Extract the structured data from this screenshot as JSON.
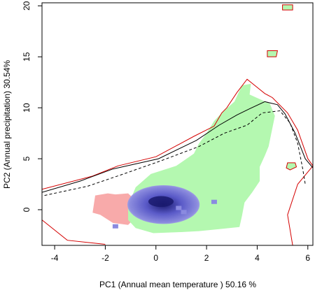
{
  "chart_data": {
    "type": "contour",
    "xlabel": "PC1 (Annual mean temperature ) 50.16 %",
    "ylabel": "PC2 (Annual precipitation) 30.54%",
    "xlim": [
      -4.5,
      6.2
    ],
    "ylim": [
      -3.5,
      20.3
    ],
    "x_ticks": [
      -4,
      -2,
      0,
      2,
      4,
      6
    ],
    "y_ticks": [
      0,
      5,
      10,
      15,
      20
    ],
    "grid": false,
    "legend": "none",
    "colors": {
      "green_region": "#b4f8b0",
      "pink_region": "#f8aaaa",
      "blue_density": "#5a5ac8",
      "blue_core": "#1a1a6e",
      "red_contour": "#d40000",
      "black_contour": "#000000",
      "frame": "#000000"
    },
    "regions": {
      "green_main": [
        [
          -1,
          1
        ],
        [
          -0.8,
          2.2
        ],
        [
          -0.2,
          3.5
        ],
        [
          0.8,
          4.3
        ],
        [
          1.5,
          5.5
        ],
        [
          1.7,
          6.5
        ],
        [
          2.0,
          7.5
        ],
        [
          2.3,
          8.7
        ],
        [
          2.6,
          9.5
        ],
        [
          3.1,
          10.6
        ],
        [
          3.4,
          12.2
        ],
        [
          3.75,
          12.35
        ],
        [
          3.7,
          11.3
        ],
        [
          4.5,
          10.4
        ],
        [
          4.7,
          9.2
        ],
        [
          4.45,
          6.2
        ],
        [
          4.3,
          5.3
        ],
        [
          4.1,
          4.2
        ],
        [
          4.1,
          2.8
        ],
        [
          3.8,
          1.7
        ],
        [
          3.5,
          0.7
        ],
        [
          3.4,
          -0.6
        ],
        [
          3.3,
          -1.7
        ],
        [
          2.5,
          -1.9
        ],
        [
          1.7,
          -2.1
        ],
        [
          1.0,
          -2.2
        ],
        [
          -0.1,
          -2.3
        ],
        [
          -0.8,
          -1.8
        ],
        [
          -1.1,
          -1.0
        ],
        [
          -1.1,
          0.3
        ]
      ],
      "green_islands": [
        [
          [
            5.2,
            4.6
          ],
          [
            5.5,
            4.6
          ],
          [
            5.55,
            4.2
          ],
          [
            5.3,
            3.9
          ],
          [
            5.15,
            4.1
          ]
        ],
        [
          [
            4.4,
            15.6
          ],
          [
            4.8,
            15.6
          ],
          [
            4.75,
            15.0
          ],
          [
            4.4,
            15.0
          ]
        ],
        [
          [
            5.0,
            20.1
          ],
          [
            5.4,
            20.1
          ],
          [
            5.4,
            19.6
          ],
          [
            5.0,
            19.6
          ]
        ]
      ],
      "pink_main": [
        [
          -2.5,
          -0.3
        ],
        [
          -2.4,
          1.4
        ],
        [
          -1.9,
          1.6
        ],
        [
          -1.6,
          1.5
        ],
        [
          -1.1,
          1.6
        ],
        [
          -0.8,
          0.9
        ],
        [
          -0.7,
          -0.5
        ],
        [
          -1.1,
          -1.5
        ],
        [
          -1.7,
          -1.3
        ],
        [
          -2.2,
          -0.5
        ]
      ],
      "blue_density": {
        "center": [
          0.3,
          0.5
        ],
        "extent": [
          [
            -1.1,
            -1.5
          ],
          [
            1.75,
            2.3
          ]
        ],
        "core": [
          0.2,
          0.8
        ]
      },
      "blue_specks": [
        [
          2.3,
          0.7
        ],
        [
          0.9,
          0.1
        ],
        [
          1.1,
          -0.3
        ],
        [
          -1.6,
          -1.7
        ]
      ],
      "red_contour": [
        [
          -4.5,
          2.0
        ],
        [
          -2.5,
          3.3
        ],
        [
          -1.5,
          4.3
        ],
        [
          0.0,
          5.2
        ],
        [
          1.5,
          7.2
        ],
        [
          2.3,
          8.2
        ],
        [
          2.6,
          9.5
        ],
        [
          2.8,
          10.0
        ],
        [
          3.2,
          11.5
        ],
        [
          3.6,
          12.8
        ],
        [
          4.3,
          11.4
        ],
        [
          4.6,
          11.0
        ],
        [
          5.2,
          9.5
        ],
        [
          5.6,
          7.8
        ],
        [
          6.0,
          5.0
        ],
        [
          6.2,
          4.3
        ],
        [
          5.6,
          2.5
        ],
        [
          5.2,
          -0.5
        ],
        [
          5.4,
          -3.5
        ]
      ],
      "black_contour_solid": [
        [
          -4.5,
          1.7
        ],
        [
          -3.0,
          2.8
        ],
        [
          -1.7,
          4.0
        ],
        [
          0.1,
          5.0
        ],
        [
          1.6,
          6.8
        ],
        [
          2.5,
          8.3
        ],
        [
          3.2,
          9.3
        ],
        [
          3.7,
          9.9
        ],
        [
          4.3,
          10.6
        ],
        [
          4.8,
          10.3
        ],
        [
          5.1,
          9.4
        ],
        [
          5.5,
          7.5
        ],
        [
          5.9,
          5.0
        ],
        [
          6.2,
          4.1
        ]
      ],
      "black_contour_dashed": [
        [
          -4.4,
          1.4
        ],
        [
          -2.7,
          2.3
        ],
        [
          -1.4,
          3.4
        ],
        [
          0.2,
          4.8
        ],
        [
          1.7,
          6.2
        ],
        [
          2.7,
          7.5
        ],
        [
          3.6,
          8.3
        ],
        [
          4.2,
          9.5
        ],
        [
          4.9,
          9.7
        ],
        [
          5.3,
          8.5
        ],
        [
          5.6,
          6.5
        ],
        [
          5.8,
          4.0
        ],
        [
          5.9,
          2.5
        ]
      ]
    }
  }
}
